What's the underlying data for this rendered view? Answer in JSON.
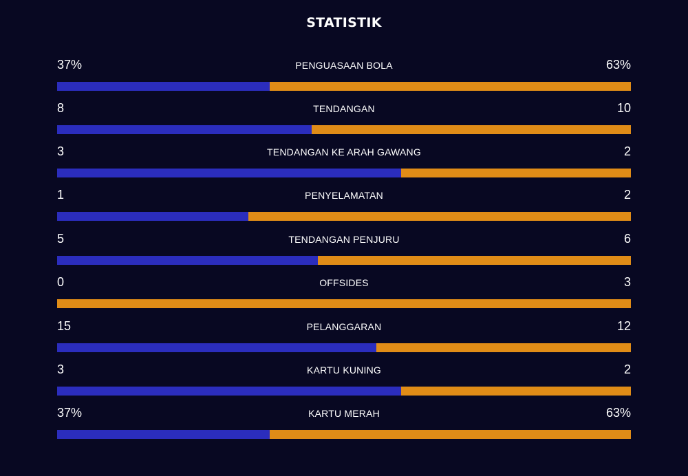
{
  "title": "STATISTIK",
  "colors": {
    "background": "#080822",
    "home": "#2b2dbd",
    "away": "#e08c17"
  },
  "stats": [
    {
      "label": "PENGUASAAN BOLA",
      "home": "37%",
      "away": "63%",
      "home_share": 0.37
    },
    {
      "label": "TENDANGAN",
      "home": "8",
      "away": "10",
      "home_share": 0.444
    },
    {
      "label": "TENDANGAN KE ARAH GAWANG",
      "home": "3",
      "away": "2",
      "home_share": 0.6
    },
    {
      "label": "PENYELAMATAN",
      "home": "1",
      "away": "2",
      "home_share": 0.333
    },
    {
      "label": "TENDANGAN PENJURU",
      "home": "5",
      "away": "6",
      "home_share": 0.455
    },
    {
      "label": "OFFSIDES",
      "home": "0",
      "away": "3",
      "home_share": 0
    },
    {
      "label": "PELANGGARAN",
      "home": "15",
      "away": "12",
      "home_share": 0.556
    },
    {
      "label": "KARTU KUNING",
      "home": "3",
      "away": "2",
      "home_share": 0.6
    },
    {
      "label": "KARTU MERAH",
      "home": "37%",
      "away": "63%",
      "home_share": 0.37
    }
  ]
}
